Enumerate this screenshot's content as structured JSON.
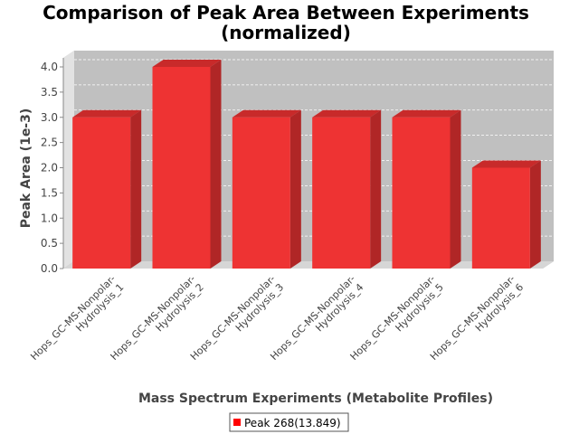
{
  "chart_data": {
    "type": "bar",
    "title_line1": "Comparison of Peak Area Between Experiments",
    "title_line2": "(normalized)",
    "xlabel": "Mass Spectrum Experiments (Metabolite Profiles)",
    "ylabel": "Peak Area (1e-3)",
    "ylim": [
      0,
      4.0
    ],
    "yticks": [
      "0.0",
      "0.5",
      "1.0",
      "1.5",
      "2.0",
      "2.5",
      "3.0",
      "3.5",
      "4.0"
    ],
    "categories": [
      {
        "line1": "Hops_GC-MS-Nonpolar-",
        "line2": "Hydrolysis_1"
      },
      {
        "line1": "Hops_GC-MS-Nonpolar-",
        "line2": "Hydrolysis_2"
      },
      {
        "line1": "Hops_GC-MS-Nonpolar-",
        "line2": "Hydrolysis_3"
      },
      {
        "line1": "Hops_GC-MS-Nonpolar-",
        "line2": "Hydrolysis_4"
      },
      {
        "line1": "Hops_GC-MS-Nonpolar-",
        "line2": "Hydrolysis_5"
      },
      {
        "line1": "Hops_GC-MS-Nonpolar-",
        "line2": "Hydrolysis_6"
      }
    ],
    "series": [
      {
        "name": "Peak 268(13.849)",
        "values": [
          3.0,
          4.0,
          3.0,
          3.0,
          3.0,
          2.0
        ]
      }
    ],
    "grid": true,
    "legend_position": "bottom",
    "colors": {
      "bar_front": "#ee3333",
      "bar_side": "#b02626",
      "bar_top": "#c82a2a",
      "plot_back": "#c0c0c0",
      "plot_floor": "#d6d6d6",
      "plot_wall": "#e2e2e2",
      "legend_swatch": "#ff0000"
    }
  }
}
